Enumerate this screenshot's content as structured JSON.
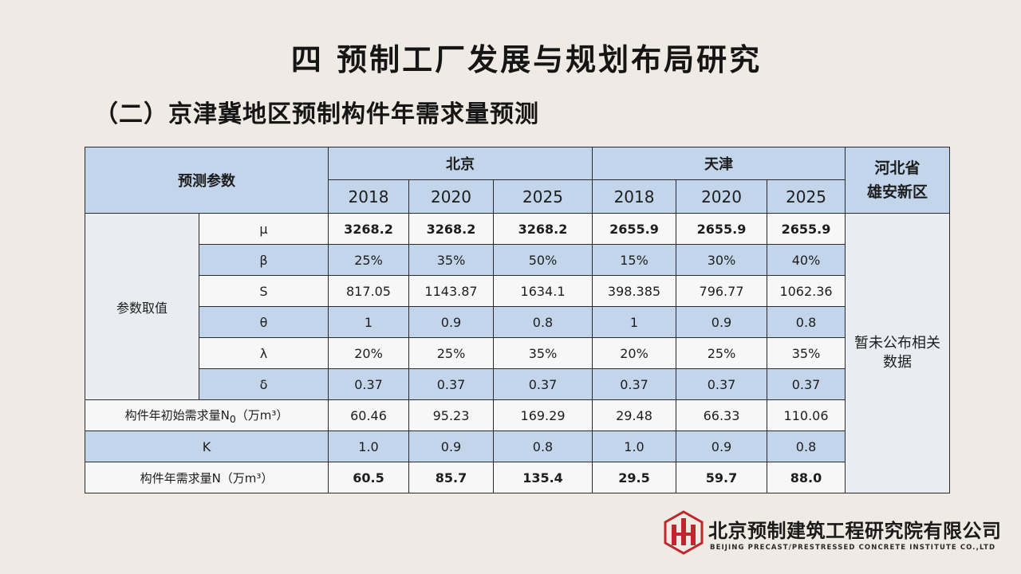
{
  "title": "四  预制工厂发展与规划布局研究",
  "subtitle": "（二）京津冀地区预制构件年需求量预测",
  "table": {
    "param_header": "预测参数",
    "regions": {
      "beijing": "北京",
      "tianjin": "天津",
      "hebei_line1": "河北省",
      "hebei_line2": "雄安新区"
    },
    "years": [
      "2018",
      "2020",
      "2025",
      "2018",
      "2020",
      "2025"
    ],
    "group_label": "参数取值",
    "rows": [
      {
        "label": "μ",
        "values": [
          "3268.2",
          "3268.2",
          "3268.2",
          "2655.9",
          "2655.9",
          "2655.9"
        ]
      },
      {
        "label": "β",
        "values": [
          "25%",
          "35%",
          "50%",
          "15%",
          "30%",
          "40%"
        ]
      },
      {
        "label": "S",
        "values": [
          "817.05",
          "1143.87",
          "1634.1",
          "398.385",
          "796.77",
          "1062.36"
        ]
      },
      {
        "label": "θ",
        "values": [
          "1",
          "0.9",
          "0.8",
          "1",
          "0.9",
          "0.8"
        ]
      },
      {
        "label": "λ",
        "values": [
          "20%",
          "25%",
          "35%",
          "20%",
          "25%",
          "35%"
        ]
      },
      {
        "label": "δ",
        "values": [
          "0.37",
          "0.37",
          "0.37",
          "0.37",
          "0.37",
          "0.37"
        ]
      }
    ],
    "n0_label_pre": "构件年初始需求量N",
    "n0_label_sub": "0",
    "n0_label_post": "（万m³）",
    "n0_values": [
      "60.46",
      "95.23",
      "169.29",
      "29.48",
      "66.33",
      "110.06"
    ],
    "k_label": "K",
    "k_values": [
      "1.0",
      "0.9",
      "0.8",
      "1.0",
      "0.9",
      "0.8"
    ],
    "n_label": "构件年需求量N（万m³）",
    "n_values": [
      "60.5",
      "85.7",
      "135.4",
      "29.5",
      "59.7",
      "88.0"
    ],
    "hebei_note_line1": "暂未公布相关",
    "hebei_note_line2": "数据"
  },
  "logo": {
    "name_cn": "北京预制建筑工程研究院有限公司",
    "name_en": "BEIJING PRECAST/PRESTRESSED CONCRETE INSTITUTE CO.,LTD",
    "mark_color": "#c0262d"
  }
}
